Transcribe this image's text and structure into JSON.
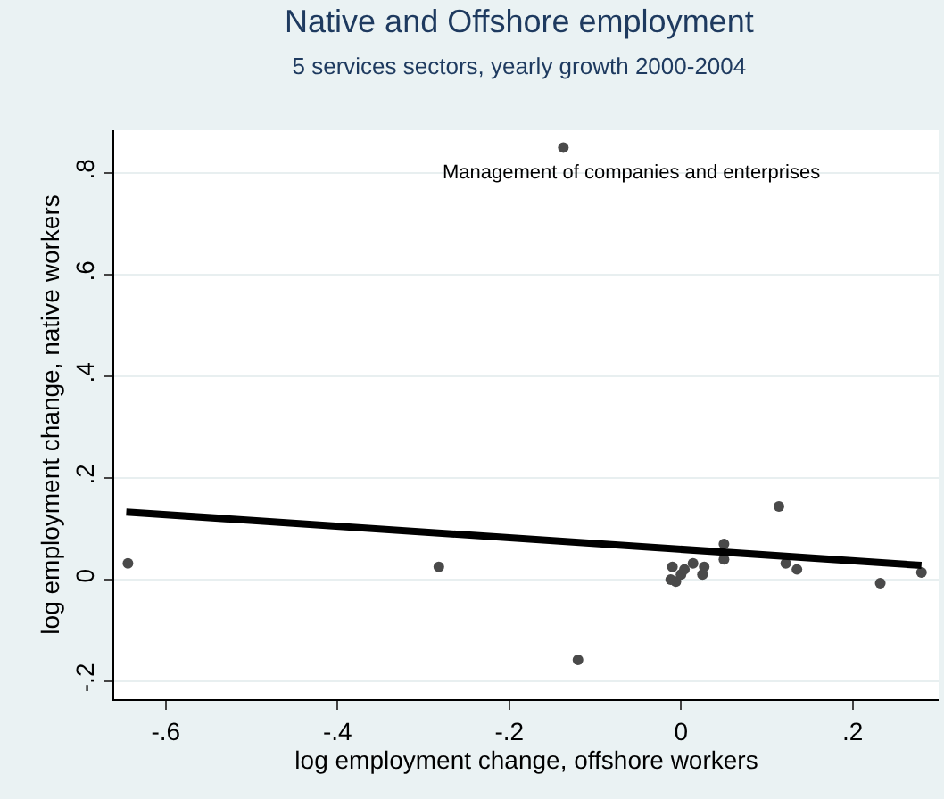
{
  "chart_data": {
    "type": "scatter",
    "title": "Native and Offshore employment",
    "subtitle": "5 services sectors, yearly growth 2000-2004",
    "xlabel": "log employment change, offshore workers",
    "ylabel": "log employment change, native workers",
    "series": [
      {
        "marker": "circle",
        "color": "#4a4a4a",
        "x": [
          -0.644,
          -0.282,
          -0.137,
          -0.12,
          -0.006,
          -0.012,
          -0.01,
          0.0,
          0.004,
          0.014,
          0.025,
          0.027,
          0.05,
          0.05,
          0.114,
          0.122,
          0.135,
          0.232,
          0.28
        ],
        "values": [
          0.032,
          0.025,
          0.85,
          -0.158,
          -0.004,
          0.0,
          0.025,
          0.01,
          0.02,
          0.032,
          0.01,
          0.025,
          0.07,
          0.04,
          0.144,
          0.032,
          0.02,
          -0.007,
          0.014
        ]
      },
      {
        "type": "line",
        "color": "#000000",
        "x": [
          -0.646,
          0.28
        ],
        "values": [
          0.133,
          0.028
        ]
      }
    ],
    "annotations": [
      {
        "text": "Management of companies and enterprises",
        "x": -0.137,
        "y": 0.85
      }
    ],
    "xlim": [
      -0.66,
      0.3
    ],
    "ylim": [
      -0.235,
      0.884
    ],
    "xticks": [
      {
        "value": -0.6,
        "label": "-.6"
      },
      {
        "value": -0.4,
        "label": "-.4"
      },
      {
        "value": -0.2,
        "label": "-.2"
      },
      0,
      {
        "value": 0.2,
        "label": ".2"
      }
    ],
    "yticks": [
      {
        "value": -0.2,
        "label": "-.2"
      },
      0,
      {
        "value": 0.2,
        "label": ".2"
      },
      {
        "value": 0.4,
        "label": ".4"
      },
      {
        "value": 0.6,
        "label": ".6"
      },
      {
        "value": 0.8,
        "label": ".8"
      }
    ],
    "grid": "y",
    "line_style": "solid"
  }
}
